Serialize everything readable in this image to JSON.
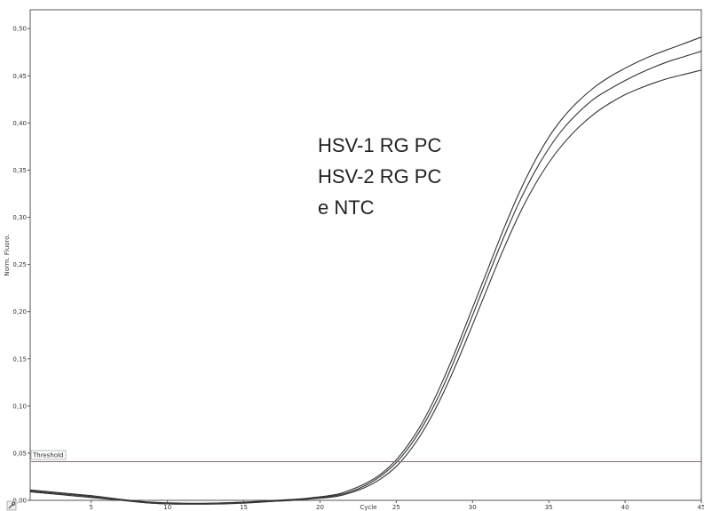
{
  "chart_data": {
    "type": "line",
    "xlabel": "Cycle",
    "ylabel": "Norm. Fluoro.",
    "xlim": [
      1,
      45
    ],
    "ylim": [
      0.0,
      0.52
    ],
    "x_ticks": [
      5,
      10,
      15,
      20,
      25,
      30,
      35,
      40,
      45
    ],
    "x_tick_labels": [
      "5",
      "10",
      "15",
      "20",
      "25",
      "30",
      "35",
      "40",
      "45"
    ],
    "y_ticks": [
      0.0,
      0.05,
      0.1,
      0.15,
      0.2,
      0.25,
      0.3,
      0.35,
      0.4,
      0.45,
      0.5
    ],
    "y_tick_labels": [
      "0,00",
      "0,05",
      "0,10",
      "0,15",
      "0,20",
      "0,25",
      "0,30",
      "0,35",
      "0,40",
      "0,45",
      "0,50"
    ],
    "grid": false,
    "threshold": {
      "label": "Threshold",
      "value": 0.041,
      "color": "#d94a4a"
    },
    "annotation": [
      "HSV-1 RG PC",
      "HSV-2 RG PC",
      "e NTC"
    ],
    "series_color": "#333333",
    "x": [
      1,
      3,
      5,
      7,
      9,
      11,
      13,
      15,
      17,
      19,
      21,
      22,
      23,
      24,
      25,
      26,
      27,
      28,
      29,
      30,
      31,
      32,
      33,
      34,
      35,
      36,
      37,
      38,
      39,
      40,
      41,
      42,
      43,
      44,
      45
    ],
    "series": [
      {
        "values": [
          0.011,
          0.008,
          0.005,
          0.001,
          -0.002,
          -0.003,
          -0.003,
          -0.002,
          0.0,
          0.002,
          0.006,
          0.011,
          0.018,
          0.028,
          0.043,
          0.064,
          0.091,
          0.125,
          0.163,
          0.204,
          0.245,
          0.286,
          0.324,
          0.357,
          0.385,
          0.407,
          0.424,
          0.438,
          0.449,
          0.458,
          0.466,
          0.473,
          0.479,
          0.485,
          0.491
        ]
      },
      {
        "values": [
          0.01,
          0.007,
          0.004,
          0.0,
          -0.003,
          -0.004,
          -0.003,
          -0.002,
          -0.001,
          0.001,
          0.005,
          0.009,
          0.016,
          0.026,
          0.04,
          0.06,
          0.086,
          0.118,
          0.156,
          0.196,
          0.237,
          0.277,
          0.314,
          0.346,
          0.373,
          0.395,
          0.412,
          0.426,
          0.436,
          0.445,
          0.453,
          0.46,
          0.466,
          0.471,
          0.476
        ]
      },
      {
        "values": [
          0.009,
          0.006,
          0.003,
          0.0,
          -0.003,
          -0.004,
          -0.004,
          -0.003,
          -0.001,
          0.001,
          0.004,
          0.008,
          0.014,
          0.023,
          0.036,
          0.055,
          0.08,
          0.111,
          0.147,
          0.186,
          0.226,
          0.265,
          0.301,
          0.332,
          0.358,
          0.379,
          0.396,
          0.41,
          0.421,
          0.43,
          0.437,
          0.443,
          0.448,
          0.452,
          0.456
        ]
      }
    ]
  },
  "toolbar": {
    "icon": "wrench-icon"
  }
}
